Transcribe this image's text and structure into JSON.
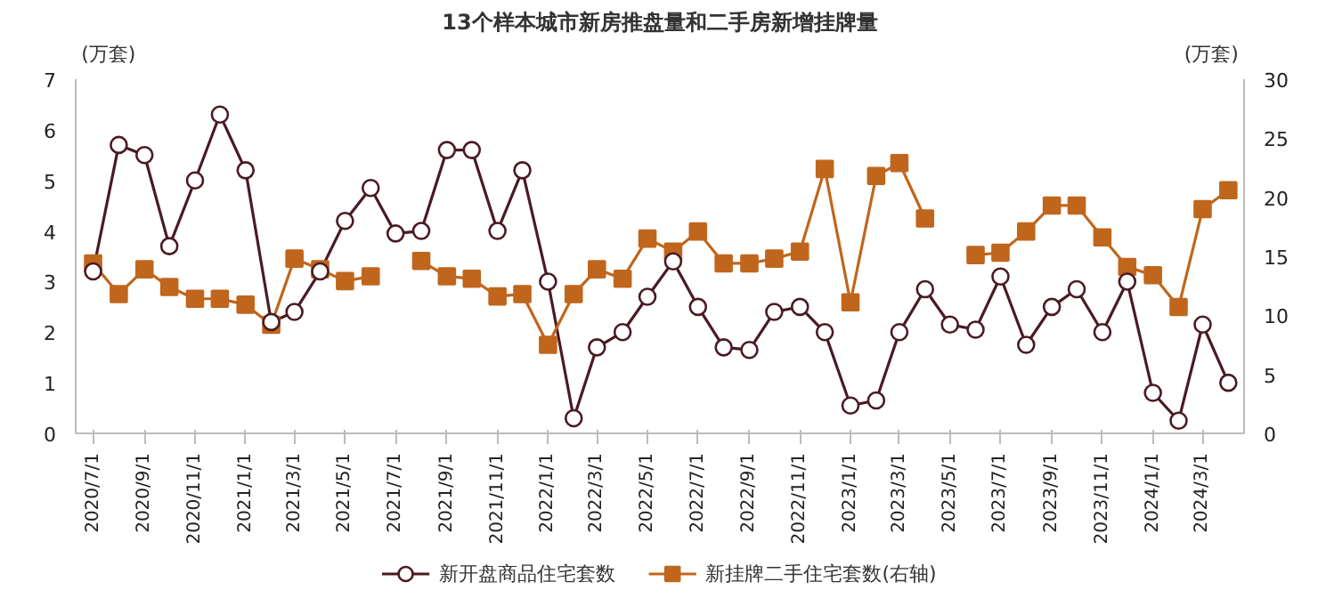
{
  "chart_data": {
    "type": "line",
    "title": "13个样本城市新房推盘量和二手房新增挂牌量",
    "ylabel": "(万套)",
    "y2label": "(万套)",
    "x": [
      "2020-07-01",
      "2020-08-01",
      "2020-09-01",
      "2020-10-01",
      "2020-11-01",
      "2020-12-01",
      "2021-01-01",
      "2021-02-01",
      "2021-03-01",
      "2021-04-01",
      "2021-05-01",
      "2021-06-01",
      "2021-07-01",
      "2021-08-01",
      "2021-09-01",
      "2021-10-01",
      "2021-11-01",
      "2021-12-01",
      "2022-01-01",
      "2022-02-01",
      "2022-03-01",
      "2022-04-01",
      "2022-05-01",
      "2022-06-01",
      "2022-07-01",
      "2022-08-01",
      "2022-09-01",
      "2022-10-01",
      "2022-11-01",
      "2022-12-01",
      "2023-01-01",
      "2023-02-01",
      "2023-03-01",
      "2023-04-01",
      "2023-05-01",
      "2023-06-01",
      "2023-07-01",
      "2023-08-01",
      "2023-09-01",
      "2023-10-01",
      "2023-11-01",
      "2023-12-01",
      "2024-01-01",
      "2024-02-01",
      "2024-03-01",
      "2024-04-01"
    ],
    "series": [
      {
        "name": "新开盘商品住宅套数",
        "color": "#4a1a22",
        "marker": "circle",
        "values": [
          3.2,
          5.7,
          5.5,
          3.7,
          5.0,
          6.3,
          5.2,
          2.2,
          2.4,
          3.2,
          4.2,
          4.85,
          3.95,
          4.0,
          5.6,
          5.6,
          4.0,
          5.2,
          3.0,
          0.3,
          1.7,
          2.0,
          2.7,
          3.4,
          2.5,
          1.7,
          1.65,
          2.4,
          2.5,
          2.0,
          0.55,
          0.65,
          2.0,
          2.85,
          2.15,
          2.05,
          3.1,
          1.75,
          2.5,
          2.85,
          2.0,
          3.0,
          0.8,
          0.25,
          2.15,
          1.0
        ]
      },
      {
        "name": "新挂牌二手住宅套数(右轴)",
        "color": "#c0661c",
        "marker": "square",
        "axis": "y2",
        "values": [
          14.4,
          11.8,
          13.9,
          12.4,
          11.4,
          11.4,
          10.9,
          9.2,
          14.8,
          13.9,
          12.9,
          13.3,
          null,
          14.6,
          13.3,
          13.1,
          11.6,
          11.8,
          7.5,
          11.8,
          13.9,
          13.1,
          16.5,
          15.4,
          17.1,
          14.4,
          14.4,
          14.8,
          15.4,
          22.4,
          11.1,
          21.8,
          22.9,
          18.2,
          null,
          15.1,
          15.3,
          17.1,
          19.3,
          19.3,
          16.6,
          14.1,
          13.4,
          10.7,
          19.0,
          20.6
        ]
      }
    ],
    "xlim": [
      "2020-06-10",
      "2024-04-20"
    ],
    "xticks": [
      {
        "value": "2020-07-01",
        "label": "2020/7/1"
      },
      {
        "value": "2020-09-01",
        "label": "2020/9/1"
      },
      {
        "value": "2020-11-01",
        "label": "2020/11/1"
      },
      {
        "value": "2021-01-01",
        "label": "2021/1/1"
      },
      {
        "value": "2021-03-01",
        "label": "2021/3/1"
      },
      {
        "value": "2021-05-01",
        "label": "2021/5/1"
      },
      {
        "value": "2021-07-01",
        "label": "2021/7/1"
      },
      {
        "value": "2021-09-01",
        "label": "2021/9/1"
      },
      {
        "value": "2021-11-01",
        "label": "2021/11/1"
      },
      {
        "value": "2022-01-01",
        "label": "2022/1/1"
      },
      {
        "value": "2022-03-01",
        "label": "2022/3/1"
      },
      {
        "value": "2022-05-01",
        "label": "2022/5/1"
      },
      {
        "value": "2022-07-01",
        "label": "2022/7/1"
      },
      {
        "value": "2022-09-01",
        "label": "2022/9/1"
      },
      {
        "value": "2022-11-01",
        "label": "2022/11/1"
      },
      {
        "value": "2023-01-01",
        "label": "2023/1/1"
      },
      {
        "value": "2023-03-01",
        "label": "2023/3/1"
      },
      {
        "value": "2023-05-01",
        "label": "2023/5/1"
      },
      {
        "value": "2023-07-01",
        "label": "2023/7/1"
      },
      {
        "value": "2023-09-01",
        "label": "2023/9/1"
      },
      {
        "value": "2023-11-01",
        "label": "2023/11/1"
      },
      {
        "value": "2024-01-01",
        "label": "2024/1/1"
      },
      {
        "value": "2024-03-01",
        "label": "2024/3/1"
      }
    ],
    "ylim": [
      0,
      7
    ],
    "yticks": [
      0,
      1,
      2,
      3,
      4,
      5,
      6,
      7
    ],
    "y2lim": [
      0,
      30
    ],
    "y2ticks": [
      0,
      5,
      10,
      15,
      20,
      25,
      30
    ],
    "legend": "bottom",
    "grid": false
  }
}
